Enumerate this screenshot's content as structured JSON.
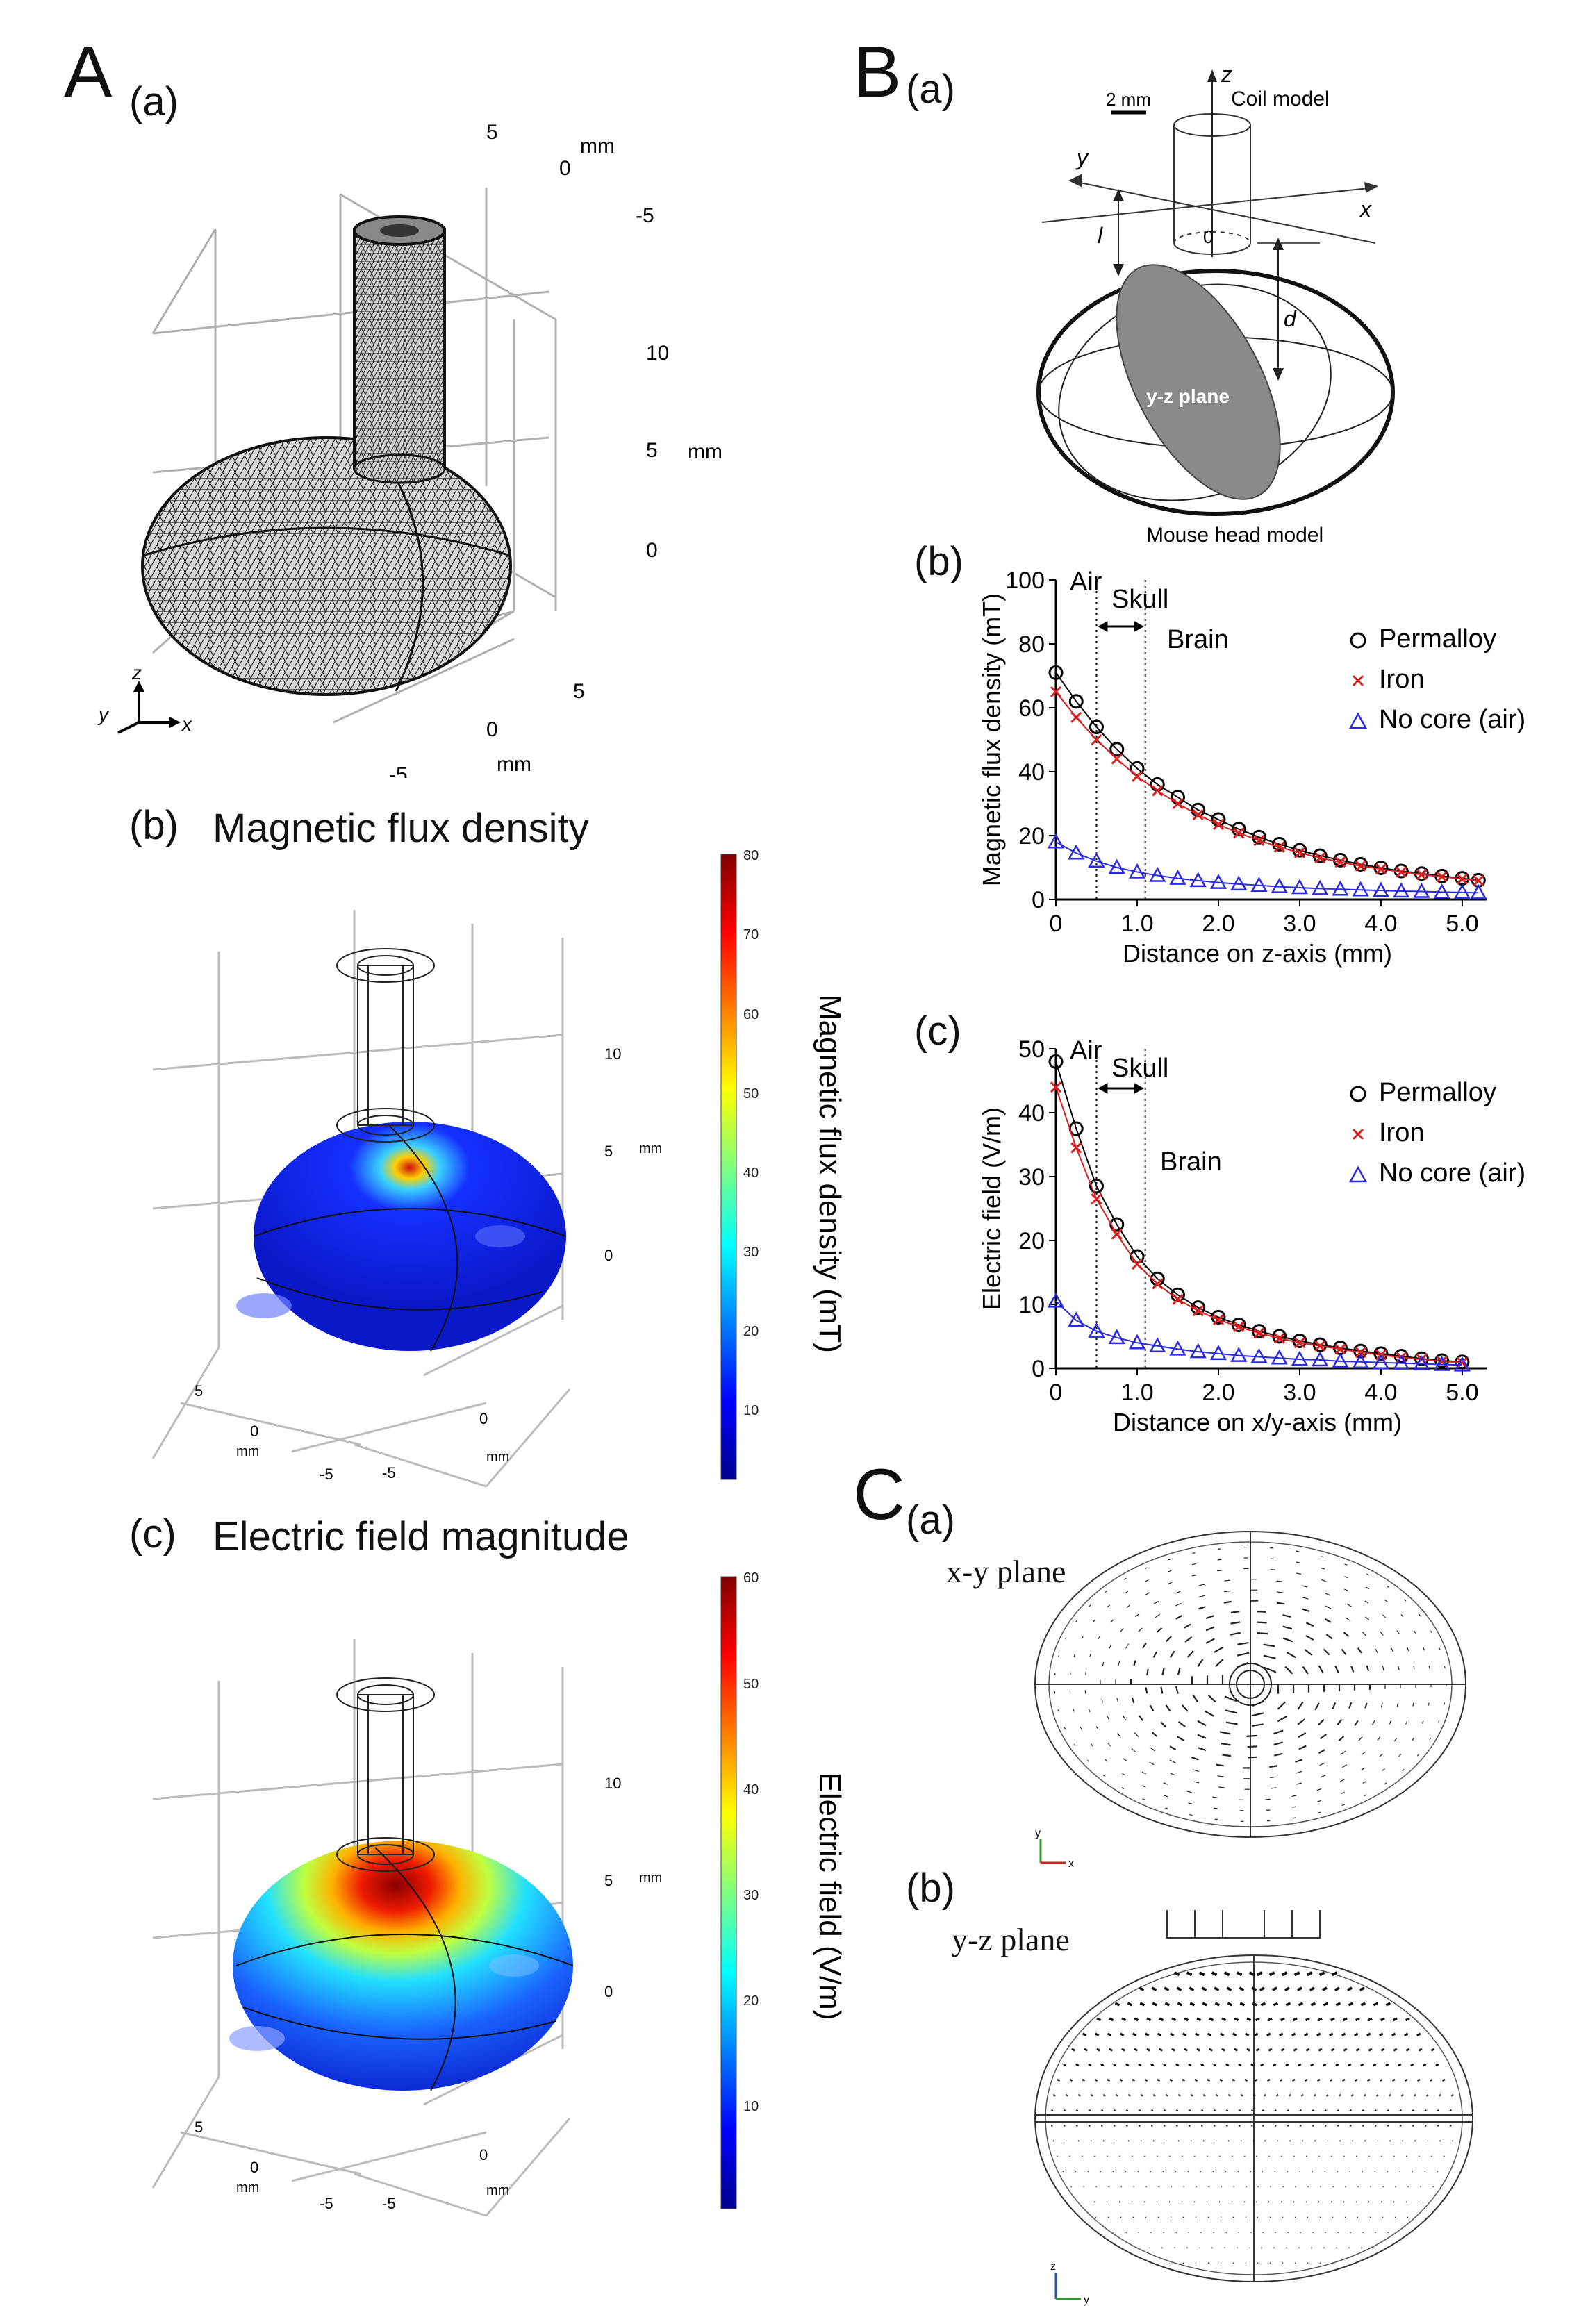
{
  "panels": {
    "A": {
      "letter": "A",
      "a": {
        "label": "(a)",
        "ticks_top": [
          "5",
          "0",
          "-5"
        ],
        "unit_top": "mm",
        "ticks_right": [
          "10",
          "5",
          "0"
        ],
        "unit_right": "mm",
        "ticks_bottom": [
          "5",
          "0",
          "-5"
        ],
        "unit_bottom": "mm",
        "axes": [
          "z",
          "y",
          "x"
        ]
      },
      "b": {
        "label": "(b)",
        "title": "Magnetic flux density",
        "colorbar_label": "Magnetic flux density (mT)",
        "colorbar_ticks": [
          "80",
          "70",
          "60",
          "50",
          "40",
          "30",
          "20",
          "10"
        ],
        "ticks_right": [
          "10",
          "5",
          "0"
        ],
        "unit_right": "mm",
        "ticks_left": [
          "5",
          "0",
          "-5"
        ],
        "unit_left": "mm",
        "ticks_front": [
          "0",
          "-5"
        ],
        "unit_front": "mm"
      },
      "c": {
        "label": "(c)",
        "title": "Electric field magnitude",
        "colorbar_label": "Electric field (V/m)",
        "colorbar_ticks": [
          "60",
          "50",
          "40",
          "30",
          "20",
          "10"
        ],
        "ticks_right": [
          "10",
          "5",
          "0"
        ],
        "unit_right": "mm",
        "ticks_left": [
          "5",
          "0",
          "-5"
        ],
        "unit_left": "mm",
        "ticks_front": [
          "0",
          "-5"
        ],
        "unit_front": "mm"
      }
    },
    "B": {
      "letter": "B",
      "a": {
        "label": "(a)",
        "scale": "2 mm",
        "coil": "Coil model",
        "head": "Mouse head model",
        "plane": "y-z plane",
        "z": "z",
        "y": "y",
        "x": "x",
        "l": "l",
        "d": "d",
        "zero": "0"
      },
      "b": {
        "label": "(b)",
        "air": "Air",
        "skull": "Skull",
        "brain": "Brain"
      },
      "c": {
        "label": "(c)",
        "air": "Air",
        "skull": "Skull",
        "brain": "Brain"
      }
    },
    "C": {
      "letter": "C",
      "a": {
        "label": "(a)",
        "plane": "x-y plane",
        "axes": [
          "y",
          "x"
        ]
      },
      "b": {
        "label": "(b)",
        "plane": "y-z plane",
        "axes": [
          "z",
          "y"
        ]
      }
    }
  },
  "colors": {
    "permalloy": "#000000",
    "iron": "#d92020",
    "air": "#2a2ae0"
  },
  "chart_data": [
    {
      "type": "scatter",
      "xlabel": "Distance on z-axis (mm)",
      "ylabel": "Magnetic flux density (mT)",
      "xlim": [
        0,
        5.3
      ],
      "ylim": [
        0,
        100
      ],
      "xticks": [
        "0",
        "1.0",
        "2.0",
        "3.0",
        "4.0",
        "5.0"
      ],
      "yticks": [
        "0",
        "20",
        "40",
        "60",
        "80",
        "100"
      ],
      "legend_position": "top-right",
      "x": [
        0,
        0.25,
        0.5,
        0.75,
        1.0,
        1.25,
        1.5,
        1.75,
        2.0,
        2.25,
        2.5,
        2.75,
        3.0,
        3.25,
        3.5,
        3.75,
        4.0,
        4.25,
        4.5,
        4.75,
        5.0,
        5.2
      ],
      "series": [
        {
          "name": "Permalloy",
          "marker": "circle",
          "values": [
            71,
            62,
            54,
            47,
            41,
            36,
            32,
            28,
            25,
            22,
            19.5,
            17.3,
            15.4,
            13.7,
            12.3,
            11,
            9.9,
            8.9,
            8.1,
            7.3,
            6.6,
            6
          ]
        },
        {
          "name": "Iron",
          "marker": "x",
          "values": [
            65,
            57,
            50,
            44,
            38.5,
            34,
            30,
            26.5,
            23.5,
            20.8,
            18.5,
            16.4,
            14.6,
            13,
            11.7,
            10.5,
            9.5,
            8.6,
            7.8,
            7.1,
            6.4,
            5.9
          ]
        },
        {
          "name": "No core (air)",
          "marker": "triangle",
          "values": [
            18,
            14.5,
            12,
            10,
            8.6,
            7.5,
            6.6,
            5.9,
            5.3,
            4.8,
            4.4,
            4,
            3.7,
            3.4,
            3.2,
            3,
            2.8,
            2.6,
            2.5,
            2.3,
            2.2,
            2.1
          ]
        }
      ],
      "regions": {
        "air_skull_boundary": 0.5,
        "skull_brain_boundary": 1.1
      }
    },
    {
      "type": "scatter",
      "xlabel": "Distance on x/y-axis (mm)",
      "ylabel": "Electric field (V/m)",
      "xlim": [
        0,
        5.3
      ],
      "ylim": [
        0,
        50
      ],
      "xticks": [
        "0",
        "1.0",
        "2.0",
        "3.0",
        "4.0",
        "5.0"
      ],
      "yticks": [
        "0",
        "10",
        "20",
        "30",
        "40",
        "50"
      ],
      "legend_position": "top-right",
      "x": [
        0,
        0.25,
        0.5,
        0.75,
        1.0,
        1.25,
        1.5,
        1.75,
        2.0,
        2.25,
        2.5,
        2.75,
        3.0,
        3.25,
        3.5,
        3.75,
        4.0,
        4.25,
        4.5,
        4.75,
        5.0
      ],
      "series": [
        {
          "name": "Permalloy",
          "marker": "circle",
          "values": [
            48,
            37.5,
            28.5,
            22.5,
            17.5,
            14,
            11.5,
            9.5,
            8,
            6.8,
            5.8,
            5,
            4.3,
            3.7,
            3.2,
            2.7,
            2.3,
            1.9,
            1.5,
            1.2,
            1
          ]
        },
        {
          "name": "Iron",
          "marker": "x",
          "values": [
            44,
            34.5,
            26.5,
            21,
            16.3,
            13.2,
            10.8,
            9,
            7.6,
            6.5,
            5.5,
            4.7,
            4,
            3.5,
            3,
            2.5,
            2.1,
            1.7,
            1.4,
            1.1,
            0.9
          ]
        },
        {
          "name": "No core (air)",
          "marker": "triangle",
          "values": [
            10.5,
            7.5,
            5.8,
            4.8,
            4,
            3.5,
            3,
            2.6,
            2.3,
            2,
            1.8,
            1.6,
            1.4,
            1.3,
            1.1,
            1,
            0.9,
            0.8,
            0.7,
            0.6,
            0.5
          ]
        }
      ],
      "regions": {
        "air_skull_boundary": 0.5,
        "skull_brain_boundary": 1.1
      }
    }
  ]
}
